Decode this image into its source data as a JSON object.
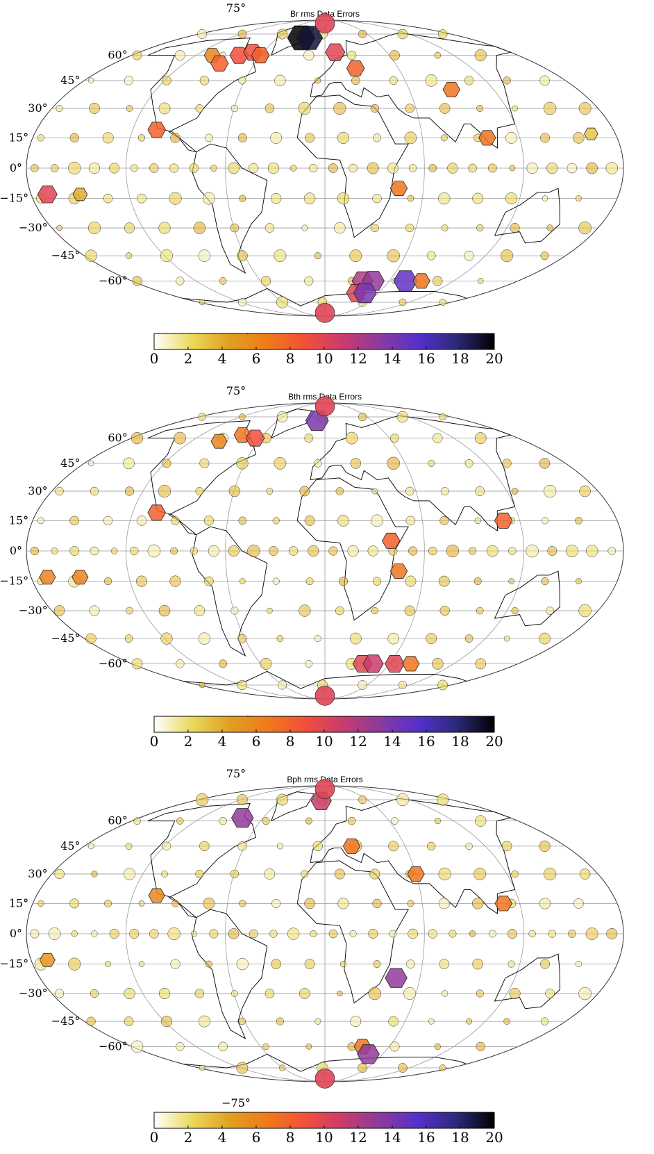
{
  "figure": {
    "panels": [
      {
        "title": "Br rms Data Errors",
        "id": "br"
      },
      {
        "title": "Bth rms Data Errors",
        "id": "bth"
      },
      {
        "title": "Bph rms Data Errors",
        "id": "bph"
      }
    ],
    "latitude_labels": [
      "75°",
      "60°",
      "45°",
      "30°",
      "15°",
      "0°",
      "−15°",
      "−30°",
      "−45°",
      "−60°",
      "−75°"
    ],
    "colorbar": {
      "colormap": "CMRmap (reversed)",
      "min": 0,
      "max": 20,
      "ticks": [
        "0",
        "2",
        "4",
        "6",
        "8",
        "10",
        "12",
        "14",
        "16",
        "18",
        "20"
      ],
      "colors": [
        "#ffffff",
        "#ead95b",
        "#e0a020",
        "#ef7a1a",
        "#f44f3a",
        "#c83b6e",
        "#8a3aa0",
        "#5330cc",
        "#2c2a7a",
        "#000000"
      ]
    }
  },
  "chart_data": [
    {
      "type": "map",
      "projection": "mollweide",
      "title": "Br rms Data Errors",
      "value_range": [
        0,
        20
      ],
      "markers": [
        {
          "lon": 165,
          "lat": 17,
          "value": 3,
          "shape": "hex"
        },
        {
          "lon": -170,
          "lat": -13,
          "value": 10,
          "shape": "hex"
        },
        {
          "lon": -150,
          "lat": -13,
          "value": 4,
          "shape": "hex"
        },
        {
          "lon": -105,
          "lat": 19,
          "value": 8,
          "shape": "hex"
        },
        {
          "lon": -105,
          "lat": 60,
          "value": 6,
          "shape": "hex"
        },
        {
          "lon": -90,
          "lat": 55,
          "value": 8,
          "shape": "hex"
        },
        {
          "lon": -80,
          "lat": 60,
          "value": 9,
          "shape": "hex"
        },
        {
          "lon": -70,
          "lat": 62,
          "value": 9,
          "shape": "hex"
        },
        {
          "lon": -60,
          "lat": 60,
          "value": 8,
          "shape": "hex"
        },
        {
          "lon": -30,
          "lat": 72,
          "value": 20,
          "shape": "hex"
        },
        {
          "lon": -20,
          "lat": 72,
          "value": 19,
          "shape": "hex"
        },
        {
          "lon": 10,
          "lat": 62,
          "value": 10,
          "shape": "hex"
        },
        {
          "lon": 25,
          "lat": 52,
          "value": 8,
          "shape": "hex"
        },
        {
          "lon": 100,
          "lat": 15,
          "value": 7,
          "shape": "hex"
        },
        {
          "lon": 90,
          "lat": 40,
          "value": 7,
          "shape": "hex"
        },
        {
          "lon": 45,
          "lat": -10,
          "value": 7,
          "shape": "hex"
        },
        {
          "lon": 35,
          "lat": -60,
          "value": 12,
          "shape": "hex"
        },
        {
          "lon": 45,
          "lat": -60,
          "value": 13,
          "shape": "hex"
        },
        {
          "lon": 35,
          "lat": -68,
          "value": 10,
          "shape": "hex"
        },
        {
          "lon": 45,
          "lat": -68,
          "value": 14,
          "shape": "hex"
        },
        {
          "lon": 75,
          "lat": -60,
          "value": 15,
          "shape": "hex"
        },
        {
          "lon": 90,
          "lat": -60,
          "value": 7,
          "shape": "hex"
        },
        {
          "lon": 0,
          "lat": -85,
          "value": 10,
          "shape": "circle"
        },
        {
          "lon": 0,
          "lat": 85,
          "value": 10,
          "shape": "circle"
        }
      ]
    },
    {
      "type": "map",
      "projection": "mollweide",
      "title": "Bth rms Data Errors",
      "value_range": [
        0,
        20
      ],
      "markers": [
        {
          "lon": -170,
          "lat": -13,
          "value": 6,
          "shape": "hex"
        },
        {
          "lon": -150,
          "lat": -13,
          "value": 6,
          "shape": "hex"
        },
        {
          "lon": -105,
          "lat": 19,
          "value": 8,
          "shape": "hex"
        },
        {
          "lon": -95,
          "lat": 58,
          "value": 6,
          "shape": "hex"
        },
        {
          "lon": -80,
          "lat": 62,
          "value": 7,
          "shape": "hex"
        },
        {
          "lon": -65,
          "lat": 60,
          "value": 9,
          "shape": "hex"
        },
        {
          "lon": -10,
          "lat": 72,
          "value": 14,
          "shape": "hex"
        },
        {
          "lon": 110,
          "lat": 15,
          "value": 8,
          "shape": "hex"
        },
        {
          "lon": 40,
          "lat": 5,
          "value": 8,
          "shape": "hex"
        },
        {
          "lon": 45,
          "lat": -10,
          "value": 7,
          "shape": "hex"
        },
        {
          "lon": 35,
          "lat": -60,
          "value": 10,
          "shape": "hex"
        },
        {
          "lon": 45,
          "lat": -60,
          "value": 11,
          "shape": "hex"
        },
        {
          "lon": 65,
          "lat": -60,
          "value": 10,
          "shape": "hex"
        },
        {
          "lon": 80,
          "lat": -60,
          "value": 7,
          "shape": "hex"
        },
        {
          "lon": 0,
          "lat": -85,
          "value": 10,
          "shape": "circle"
        },
        {
          "lon": 0,
          "lat": 85,
          "value": 10,
          "shape": "circle"
        }
      ]
    },
    {
      "type": "map",
      "projection": "mollweide",
      "title": "Bph rms Data Errors",
      "value_range": [
        0,
        20
      ],
      "markers": [
        {
          "lon": -170,
          "lat": -13,
          "value": 5,
          "shape": "hex"
        },
        {
          "lon": -105,
          "lat": 19,
          "value": 6,
          "shape": "hex"
        },
        {
          "lon": -80,
          "lat": 62,
          "value": 13,
          "shape": "hex"
        },
        {
          "lon": -5,
          "lat": 74,
          "value": 11,
          "shape": "hex"
        },
        {
          "lon": 20,
          "lat": 45,
          "value": 7,
          "shape": "hex"
        },
        {
          "lon": 60,
          "lat": 30,
          "value": 7,
          "shape": "hex"
        },
        {
          "lon": 110,
          "lat": 15,
          "value": 7,
          "shape": "hex"
        },
        {
          "lon": 45,
          "lat": -22,
          "value": 13,
          "shape": "hex"
        },
        {
          "lon": 35,
          "lat": -60,
          "value": 7,
          "shape": "hex"
        },
        {
          "lon": 45,
          "lat": -65,
          "value": 13,
          "shape": "hex"
        },
        {
          "lon": 0,
          "lat": -85,
          "value": 10,
          "shape": "circle"
        },
        {
          "lon": 0,
          "lat": 85,
          "value": 10,
          "shape": "circle"
        }
      ]
    }
  ]
}
